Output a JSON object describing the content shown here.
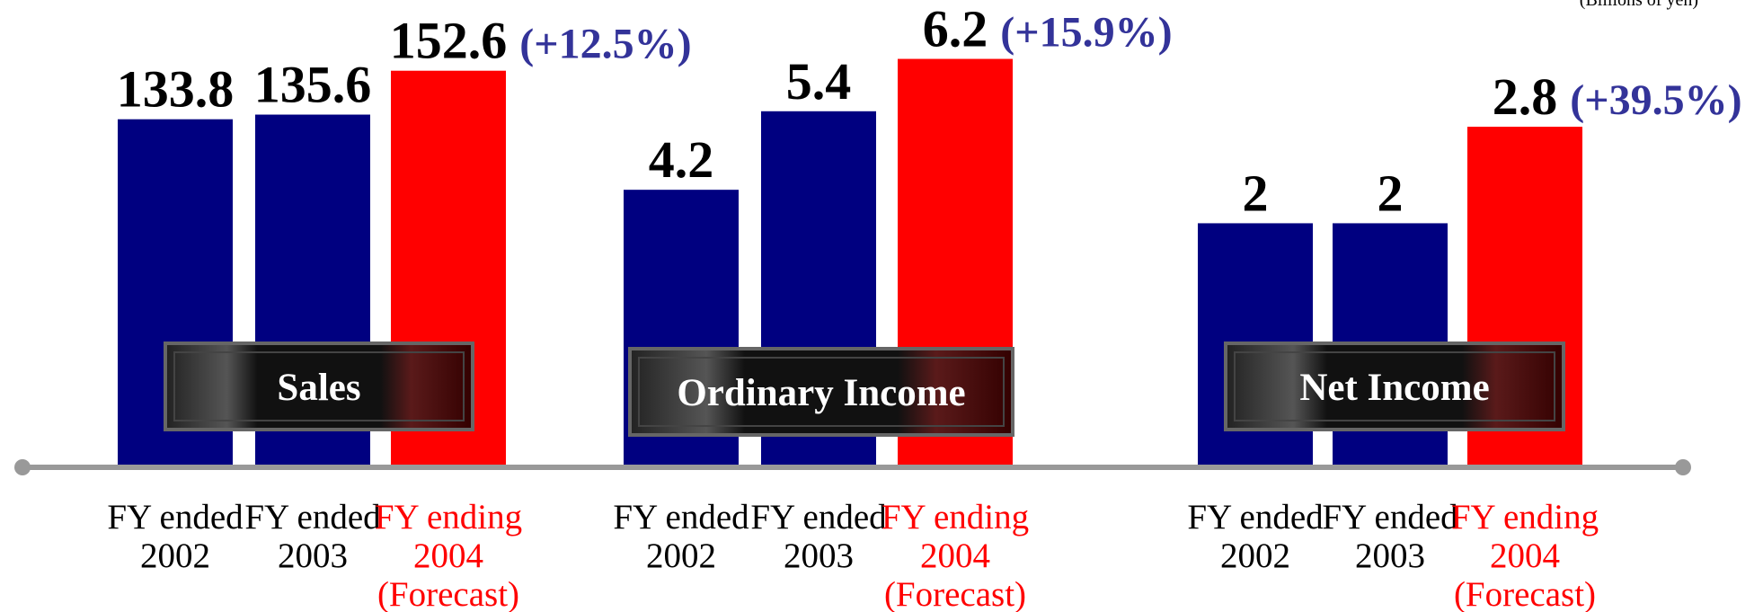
{
  "unit_note": "(Billions of yen)",
  "chart_data": [
    {
      "type": "bar",
      "title": "Sales",
      "categories": [
        [
          "FY ended",
          "2002"
        ],
        [
          "FY ended",
          "2003"
        ],
        [
          "FY ending",
          "2004",
          "(Forecast)"
        ]
      ],
      "values": [
        133.8,
        135.6,
        152.6
      ],
      "colors": [
        "#000080",
        "#000080",
        "#ff0000"
      ],
      "ylim": [
        0,
        180
      ],
      "annotation": "(+12.5%)"
    },
    {
      "type": "bar",
      "title": "Ordinary Income",
      "categories": [
        [
          "FY ended",
          "2002"
        ],
        [
          "FY ended",
          "2003"
        ],
        [
          "FY ending",
          "2004",
          "(Forecast)"
        ]
      ],
      "values": [
        4.2,
        5.4,
        6.2
      ],
      "colors": [
        "#000080",
        "#000080",
        "#ff0000"
      ],
      "ylim": [
        0,
        7.1
      ],
      "annotation": "(+15.9%)"
    },
    {
      "type": "bar",
      "title": "Net Income",
      "categories": [
        [
          "FY ended",
          "2002"
        ],
        [
          "FY ended",
          "2003"
        ],
        [
          "FY ending",
          "2004",
          "(Forecast)"
        ]
      ],
      "values": [
        2.0,
        2.0,
        2.8
      ],
      "colors": [
        "#000080",
        "#000080",
        "#ff0000"
      ],
      "ylim": [
        0,
        3.85
      ],
      "annotation": "(+39.5%)"
    }
  ]
}
